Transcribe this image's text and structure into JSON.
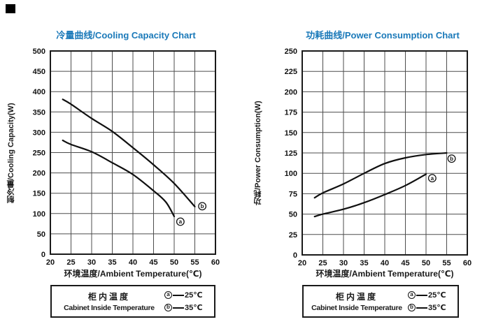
{
  "page": {
    "background": "#ffffff",
    "accent_color": "#1a79b9",
    "corner_mark_color": "#000000"
  },
  "legend": {
    "title_zh": "柜内温度",
    "title_en": "Cabinet Inside Temperature",
    "entries": [
      {
        "marker": "a",
        "value": "25℃"
      },
      {
        "marker": "b",
        "value": "35℃"
      }
    ]
  },
  "chart_data": [
    {
      "type": "line",
      "title": "冷量曲线/Cooling Capacity Chart",
      "xlabel": "环境温度/Ambient Temperature(℃)",
      "ylabel": "制冷量/Cooling Capacity(W)",
      "xlim": [
        20,
        60
      ],
      "ylim": [
        0,
        500
      ],
      "xticks": [
        20,
        25,
        30,
        35,
        40,
        45,
        50,
        55,
        60
      ],
      "yticks": [
        0,
        50,
        100,
        150,
        200,
        250,
        300,
        350,
        400,
        450,
        500
      ],
      "grid": true,
      "legend_position": "below",
      "series": [
        {
          "name": "a",
          "label": "cabinet inside 25℃",
          "points": [
            [
              23,
              280
            ],
            [
              25,
              270
            ],
            [
              30,
              252
            ],
            [
              35,
              225
            ],
            [
              40,
              196
            ],
            [
              45,
              156
            ],
            [
              48,
              128
            ],
            [
              50,
              93
            ]
          ]
        },
        {
          "name": "b",
          "label": "cabinet inside 35℃",
          "points": [
            [
              23,
              381
            ],
            [
              25,
              369
            ],
            [
              30,
              334
            ],
            [
              35,
              302
            ],
            [
              40,
              262
            ],
            [
              45,
              220
            ],
            [
              50,
              174
            ],
            [
              55,
              117
            ]
          ]
        }
      ],
      "end_markers": [
        {
          "series": "a",
          "text": "a",
          "x": 51.5,
          "y": 80
        },
        {
          "series": "b",
          "text": "b",
          "x": 56.8,
          "y": 118
        }
      ]
    },
    {
      "type": "line",
      "title": "功耗曲线/Power Consumption Chart",
      "xlabel": "环境温度/Ambient Temperature(℃)",
      "ylabel": "功耗/Power Consumption(W)",
      "xlim": [
        20,
        60
      ],
      "ylim": [
        0,
        250
      ],
      "xticks": [
        20,
        25,
        30,
        35,
        40,
        45,
        50,
        55,
        60
      ],
      "yticks": [
        0,
        25,
        50,
        75,
        100,
        125,
        150,
        175,
        200,
        225,
        250
      ],
      "grid": true,
      "legend_position": "below",
      "series": [
        {
          "name": "a",
          "label": "cabinet inside 25℃",
          "points": [
            [
              23,
              47
            ],
            [
              25,
              50
            ],
            [
              30,
              56
            ],
            [
              35,
              64
            ],
            [
              40,
              74
            ],
            [
              45,
              85
            ],
            [
              50,
              99
            ]
          ]
        },
        {
          "name": "b",
          "label": "cabinet inside 35℃",
          "points": [
            [
              23,
              70
            ],
            [
              25,
              76
            ],
            [
              30,
              87
            ],
            [
              35,
              100
            ],
            [
              40,
              112
            ],
            [
              45,
              119
            ],
            [
              50,
              123
            ],
            [
              55,
              125
            ]
          ]
        }
      ],
      "end_markers": [
        {
          "series": "a",
          "text": "a",
          "x": 51.5,
          "y": 94
        },
        {
          "series": "b",
          "text": "b",
          "x": 56.2,
          "y": 118
        }
      ]
    }
  ]
}
